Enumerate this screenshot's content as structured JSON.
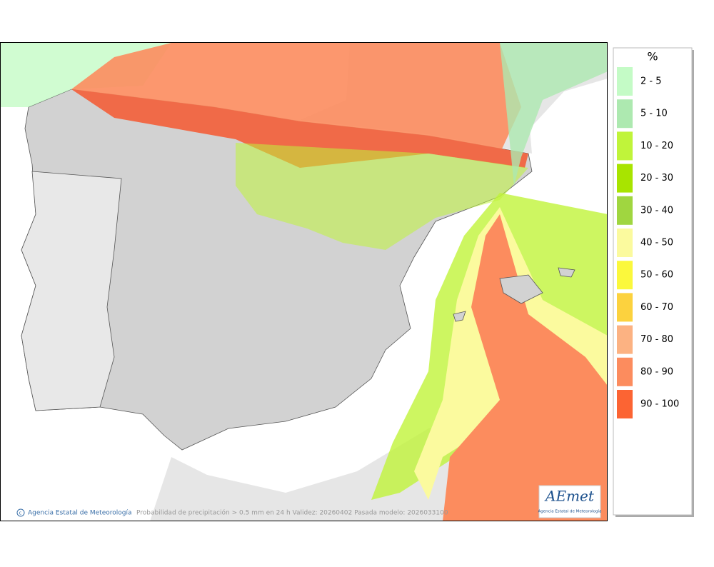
{
  "legend": {
    "title": "%",
    "items": [
      {
        "label": "2 - 5",
        "color": "#c4fbc6"
      },
      {
        "label": "5 - 10",
        "color": "#ade9b0"
      },
      {
        "label": "10 - 20",
        "color": "#c0f43a"
      },
      {
        "label": "20 - 30",
        "color": "#a8e400"
      },
      {
        "label": "30 - 40",
        "color": "#a0d640"
      },
      {
        "label": "40 - 50",
        "color": "#fbfa9e"
      },
      {
        "label": "50 - 60",
        "color": "#fbf83c"
      },
      {
        "label": "60 - 70",
        "color": "#fcd23e"
      },
      {
        "label": "70 - 80",
        "color": "#fcb282"
      },
      {
        "label": "80 - 90",
        "color": "#fc8c5e"
      },
      {
        "label": "90 - 100",
        "color": "#fc6433"
      }
    ]
  },
  "footer": {
    "credit": "Agencia Estatal de Meteorología",
    "caption": "Probabilidad de precipitación > 0.5 mm en 24 h Validez: 20260402 Pasada modelo: 2026033100"
  },
  "logo": {
    "text": "AEmet",
    "subtitle": "Agencia Estatal de Meteorología"
  }
}
